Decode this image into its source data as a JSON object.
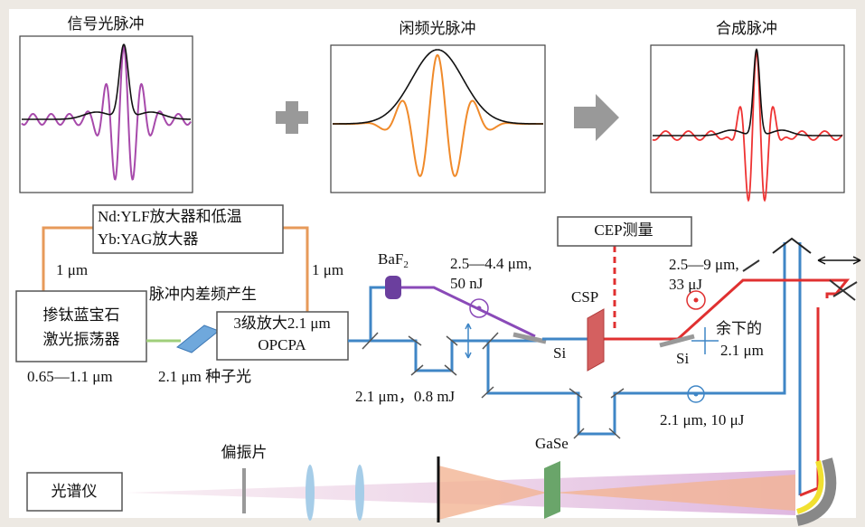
{
  "panels": [
    {
      "title": "信号光脉冲"
    },
    {
      "title": "闲频光脉冲"
    },
    {
      "title": "合成脉冲"
    }
  ],
  "boxes": {
    "pump_amplifier": [
      "Nd:YLF放大器和低温",
      "Yb:YAG放大器"
    ],
    "oscillator": [
      "掺钛蓝宝石",
      "激光振荡器"
    ],
    "opcpa": [
      "3级放大2.1 μm",
      "OPCPA"
    ],
    "cep": "CEP测量",
    "spectrometer": "光谱仪"
  },
  "labels": {
    "pump_left": "1 μm",
    "pump_right": "1 μm",
    "dfg": "脉冲内差频产生",
    "osc_range": "0.65—1.1 μm",
    "seed": "2.1 μm 种子光",
    "baf2": {
      "base": "BaF",
      "sub": "2"
    },
    "mir_range": [
      "2.5—4.4 μm,",
      "50 nJ"
    ],
    "si_1": "Si",
    "csp": "CSP",
    "out_range": [
      "2.5—9 μm,",
      "33 μJ"
    ],
    "remain": [
      "余下的",
      "2.1 μm"
    ],
    "si_2": "Si",
    "pump_main": "2.1 μm，0.8 mJ",
    "probe": "2.1 μm, 10 μJ",
    "gase": "GaSe",
    "polarizer": "偏振片"
  }
}
